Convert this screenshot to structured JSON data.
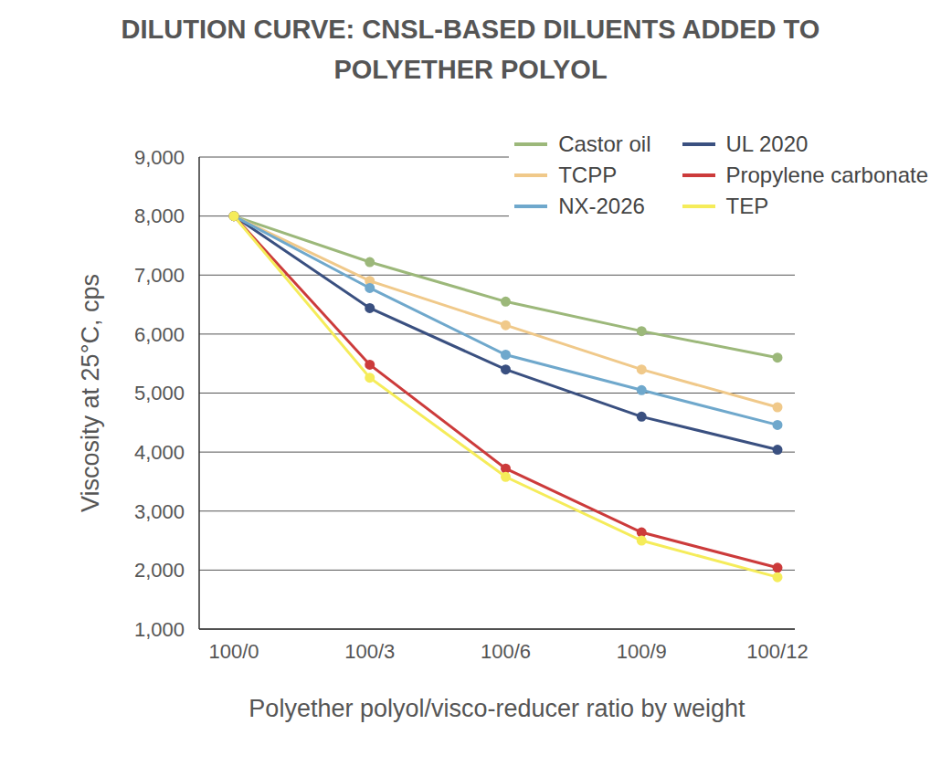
{
  "chart_data": {
    "type": "line",
    "title": "DILUTION CURVE: CNSL-BASED DILUENTS ADDED TO POLYETHER POLYOL",
    "x_label": "Polyether polyol/visco-reducer ratio by weight",
    "y_label": "Viscosity at 25°C, cps",
    "categories": [
      "100/0",
      "100/3",
      "100/6",
      "100/9",
      "100/12"
    ],
    "series": [
      {
        "name": "Castor oil",
        "color": "#9cb87a",
        "marker": "circle",
        "values": [
          8000,
          7220,
          6550,
          6050,
          5600
        ]
      },
      {
        "name": "UL 2020",
        "color": "#3a5080",
        "marker": "circle",
        "values": [
          8000,
          6440,
          5400,
          4600,
          4040
        ]
      },
      {
        "name": "TCPP",
        "color": "#f0c98a",
        "marker": "circle",
        "values": [
          8000,
          6900,
          6150,
          5400,
          4760
        ]
      },
      {
        "name": "Propylene carbonate",
        "color": "#cc3b3b",
        "marker": "circle",
        "values": [
          8000,
          5480,
          3720,
          2640,
          2040
        ]
      },
      {
        "name": "NX-2026",
        "color": "#6fa8cc",
        "marker": "circle",
        "values": [
          8000,
          6780,
          5650,
          5050,
          4460
        ]
      },
      {
        "name": "TEP",
        "color": "#f5ec5a",
        "marker": "circle",
        "values": [
          8000,
          5260,
          3580,
          2500,
          1880
        ]
      }
    ],
    "ylim": [
      1000,
      9000
    ],
    "yticks": [
      {
        "value": 1000,
        "label": "1,000"
      },
      {
        "value": 2000,
        "label": "2,000"
      },
      {
        "value": 3000,
        "label": "3,000"
      },
      {
        "value": 4000,
        "label": "4,000"
      },
      {
        "value": 5000,
        "label": "5,000"
      },
      {
        "value": 6000,
        "label": "6,000"
      },
      {
        "value": 7000,
        "label": "7,000"
      },
      {
        "value": 8000,
        "label": "8,000"
      },
      {
        "value": 9000,
        "label": "9,000"
      }
    ],
    "grid": true,
    "legend": "top right"
  }
}
